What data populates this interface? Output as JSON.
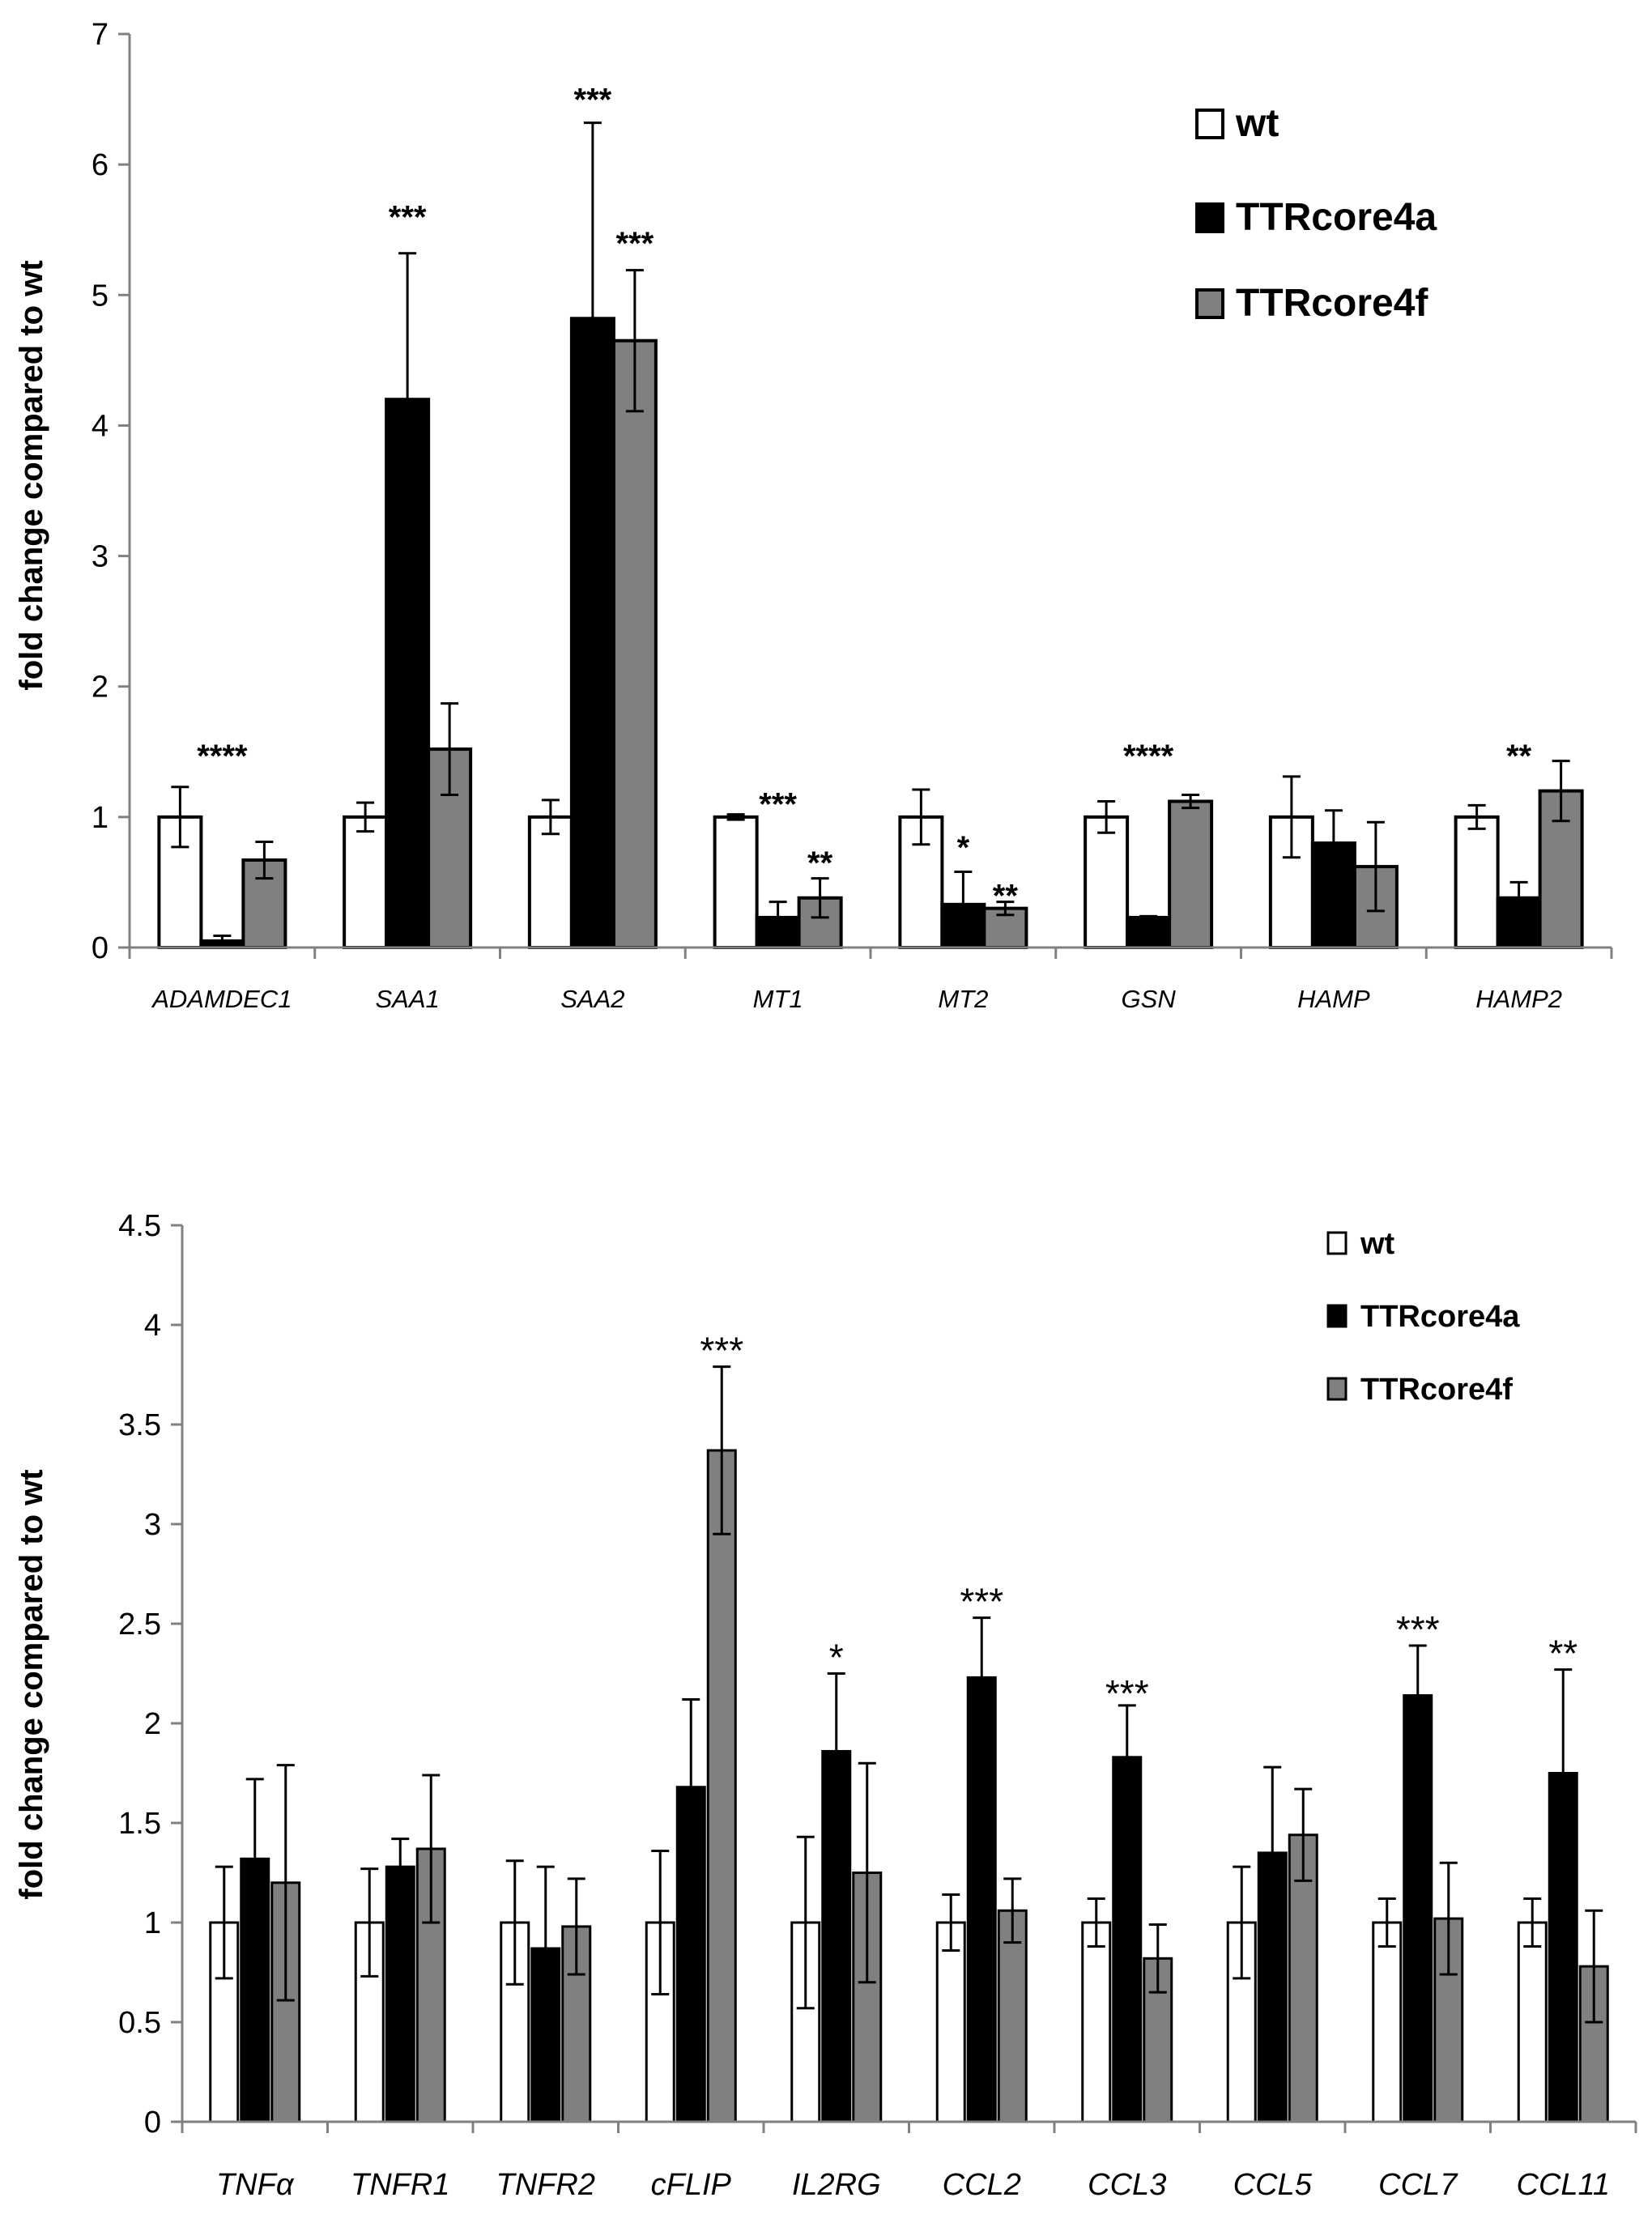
{
  "colors": {
    "wt": "#ffffff",
    "TTRcore4a": "#000000",
    "TTRcore4f": "#808080",
    "axis": "#808080",
    "text": "#000000"
  },
  "chart_data": [
    {
      "type": "bar",
      "ylabel": "fold change compared to wt",
      "ylim": [
        0,
        7
      ],
      "yticks": [
        "0",
        "1",
        "2",
        "3",
        "4",
        "5",
        "6",
        "7"
      ],
      "legend_position": "top-right",
      "categories": [
        "ADAMDEC1",
        "SAA1",
        "SAA2",
        "MT1",
        "MT2",
        "GSN",
        "HAMP",
        "HAMP2"
      ],
      "series": [
        {
          "name": "wt",
          "values": [
            1.0,
            1.0,
            1.0,
            1.0,
            1.0,
            1.0,
            1.0,
            1.0
          ],
          "errors": [
            0.23,
            0.11,
            0.13,
            0.02,
            0.21,
            0.12,
            0.31,
            0.09
          ]
        },
        {
          "name": "TTRcore4a",
          "values": [
            0.05,
            4.2,
            4.82,
            0.23,
            0.33,
            0.23,
            0.8,
            0.38
          ],
          "errors": [
            0.04,
            1.12,
            1.5,
            0.12,
            0.25,
            0.01,
            0.25,
            0.12
          ]
        },
        {
          "name": "TTRcore4f",
          "values": [
            0.67,
            1.52,
            4.65,
            0.38,
            0.3,
            1.12,
            0.62,
            1.2
          ],
          "errors": [
            0.14,
            0.35,
            0.54,
            0.15,
            0.05,
            0.05,
            0.34,
            0.23
          ]
        }
      ],
      "annotations": [
        {
          "category": "ADAMDEC1",
          "text": "****",
          "y": 1.52
        },
        {
          "category": "SAA1",
          "text": "***",
          "y": 5.65,
          "series": "TTRcore4a"
        },
        {
          "category": "SAA2",
          "text": "***",
          "y": 6.55,
          "series": "TTRcore4a"
        },
        {
          "category": "SAA2",
          "text": "***",
          "y": 5.45,
          "series": "TTRcore4f"
        },
        {
          "category": "MT1",
          "text": "***",
          "y": 1.15
        },
        {
          "category": "MT1",
          "text": "**",
          "y": 0.7,
          "series": "TTRcore4f"
        },
        {
          "category": "MT2",
          "text": "*",
          "y": 0.82,
          "series": "TTRcore4a"
        },
        {
          "category": "MT2",
          "text": "**",
          "y": 0.45,
          "series": "TTRcore4f"
        },
        {
          "category": "GSN",
          "text": "****",
          "y": 1.52
        },
        {
          "category": "HAMP2",
          "text": "**",
          "y": 1.52
        }
      ]
    },
    {
      "type": "bar",
      "ylabel": "fold change compared to wt",
      "ylim": [
        0,
        4.5
      ],
      "yticks": [
        "0",
        "0.5",
        "1",
        "1.5",
        "2",
        "2.5",
        "3",
        "3.5",
        "4",
        "4.5"
      ],
      "legend_position": "top-right",
      "categories": [
        "TNFα",
        "TNFR1",
        "TNFR2",
        "cFLIP",
        "IL2RG",
        "CCL2",
        "CCL3",
        "CCL5",
        "CCL7",
        "CCL11"
      ],
      "series": [
        {
          "name": "wt",
          "values": [
            1.0,
            1.0,
            1.0,
            1.0,
            1.0,
            1.0,
            1.0,
            1.0,
            1.0,
            1.0
          ],
          "errors": [
            0.28,
            0.27,
            0.31,
            0.36,
            0.43,
            0.14,
            0.12,
            0.28,
            0.12,
            0.12
          ]
        },
        {
          "name": "TTRcore4a",
          "values": [
            1.32,
            1.28,
            0.87,
            1.68,
            1.86,
            2.23,
            1.83,
            1.35,
            2.14,
            1.75
          ],
          "errors": [
            0.4,
            0.14,
            0.41,
            0.44,
            0.39,
            0.3,
            0.26,
            0.43,
            0.25,
            0.52
          ]
        },
        {
          "name": "TTRcore4f",
          "values": [
            1.2,
            1.37,
            0.98,
            3.37,
            1.25,
            1.06,
            0.82,
            1.44,
            1.02,
            0.78
          ],
          "errors": [
            0.59,
            0.37,
            0.24,
            0.42,
            0.55,
            0.16,
            0.17,
            0.23,
            0.28,
            0.28
          ]
        }
      ],
      "annotations": [
        {
          "category": "cFLIP",
          "text": "***",
          "y": 3.92,
          "series": "TTRcore4f"
        },
        {
          "category": "IL2RG",
          "text": "*",
          "y": 2.38,
          "series": "TTRcore4a"
        },
        {
          "category": "CCL2",
          "text": "***",
          "y": 2.66,
          "series": "TTRcore4a"
        },
        {
          "category": "CCL3",
          "text": "***",
          "y": 2.2,
          "series": "TTRcore4a"
        },
        {
          "category": "CCL7",
          "text": "***",
          "y": 2.52,
          "series": "TTRcore4a"
        },
        {
          "category": "CCL11",
          "text": "**",
          "y": 2.4,
          "series": "TTRcore4a"
        }
      ]
    }
  ]
}
